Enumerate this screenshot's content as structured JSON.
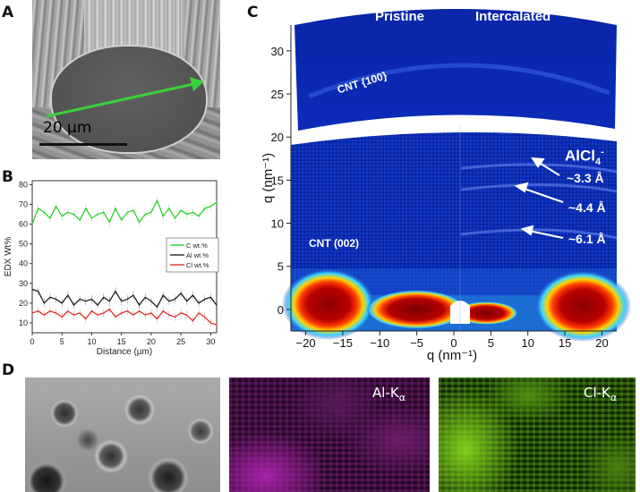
{
  "panel_labels": {
    "a": "A",
    "b": "B",
    "c": "C",
    "d": "D"
  },
  "panel_a": {
    "scale_bar_text": "20 µm",
    "arrow_color": "#39d13a"
  },
  "panel_b": {
    "chart_data": {
      "type": "line",
      "xlabel": "Distance (µm)",
      "ylabel": "EDX Wt%",
      "xlim": [
        0,
        31
      ],
      "ylim": [
        5,
        82
      ],
      "x_ticks": [
        0,
        5,
        10,
        15,
        20,
        25,
        30
      ],
      "y_ticks": [
        10,
        20,
        30,
        40,
        50,
        60,
        70,
        80
      ],
      "x": [
        0,
        1,
        2,
        3,
        4,
        5,
        6,
        7,
        8,
        9,
        10,
        11,
        12,
        13,
        14,
        15,
        16,
        17,
        18,
        19,
        20,
        21,
        22,
        23,
        24,
        25,
        26,
        27,
        28,
        29,
        30,
        31
      ],
      "series": [
        {
          "name": "C wt.%",
          "color": "#22cc22",
          "values": [
            60,
            68,
            66,
            63,
            69,
            64,
            66,
            65,
            62,
            68,
            63,
            65,
            66,
            61,
            68,
            62,
            66,
            67,
            61,
            65,
            66,
            72,
            64,
            68,
            63,
            67,
            65,
            66,
            64,
            68,
            69,
            71
          ]
        },
        {
          "name": "Al wt.%",
          "color": "#111111",
          "values": [
            27,
            26,
            20,
            23,
            22,
            20,
            24,
            19,
            22,
            21,
            22,
            19,
            23,
            21,
            26,
            21,
            22,
            24,
            19,
            23,
            21,
            18,
            24,
            21,
            22,
            25,
            21,
            24,
            20,
            22,
            23,
            19
          ]
        },
        {
          "name": "Cl wt.%",
          "color": "#dd2222",
          "values": [
            15,
            16,
            14,
            16,
            15,
            13,
            16,
            14,
            15,
            12,
            16,
            14,
            15,
            17,
            13,
            15,
            16,
            14,
            16,
            14,
            15,
            12,
            16,
            14,
            13,
            15,
            14,
            11,
            15,
            13,
            10,
            9
          ]
        }
      ]
    }
  },
  "panel_c": {
    "top_label_left": "Pristine",
    "top_label_right": "Intercalated",
    "label_cnt100": "CNT {100}",
    "label_cnt002": "CNT (002)",
    "species_main": "AlCl",
    "species_sub": "4",
    "species_sup": "-",
    "spacings": [
      "~3.3 Å",
      "~4.4 Å",
      "~6.1 Å"
    ],
    "xlabel": "q (nm⁻¹)",
    "ylabel": "q (nm⁻¹)",
    "x_ticks": [
      "−20",
      "−15",
      "−10",
      "−5",
      "0",
      "5",
      "10",
      "15",
      "20"
    ],
    "y_ticks": [
      "30",
      "25",
      "20",
      "15",
      "10",
      "5",
      "0"
    ]
  },
  "panel_d": {
    "label_al": "Al-K",
    "label_cl": "Cl-K",
    "label_sub": "α"
  }
}
